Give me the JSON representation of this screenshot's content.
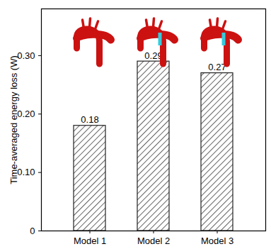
{
  "chart_data": {
    "type": "bar",
    "y_label": "Time-averaged energy loss (W)",
    "categories": [
      "Model 1",
      "Model 2",
      "Model 3"
    ],
    "values": [
      0.18,
      0.29,
      0.27
    ],
    "color": "#222222",
    "ylim": [
      0,
      0.38
    ],
    "yticks": [
      0,
      {
        "value": 0.1,
        "label": "0.10"
      },
      {
        "value": 0.2,
        "label": "0.20"
      },
      {
        "value": 0.3,
        "label": "0.30"
      }
    ],
    "grid": false,
    "data_labels": true
  }
}
